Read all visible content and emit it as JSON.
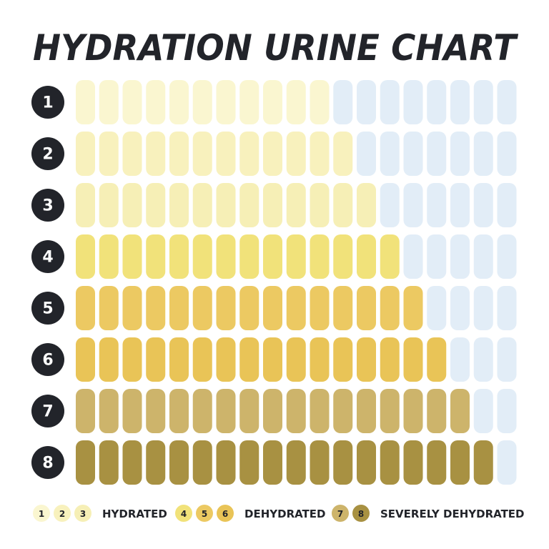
{
  "title": "HYDRATION URINE CHART",
  "rows": [
    {
      "label": "1",
      "color": "#faf6d0"
    },
    {
      "label": "2",
      "color": "#f8f1bd"
    },
    {
      "label": "3",
      "color": "#f6efb6"
    },
    {
      "label": "4",
      "color": "#f1e27a"
    },
    {
      "label": "5",
      "color": "#ecc962"
    },
    {
      "label": "6",
      "color": "#e9c457"
    },
    {
      "label": "7",
      "color": "#cdb46b"
    },
    {
      "label": "8",
      "color": "#a89142"
    }
  ],
  "empty_color": "#e2edf7",
  "legend": [
    {
      "numbers": [
        "1",
        "2",
        "3"
      ],
      "label": "HYDRATED"
    },
    {
      "numbers": [
        "4",
        "5",
        "6"
      ],
      "label": "DEHYDRATED"
    },
    {
      "numbers": [
        "7",
        "8"
      ],
      "label": "SEVERELY DEHYDRATED"
    }
  ]
}
